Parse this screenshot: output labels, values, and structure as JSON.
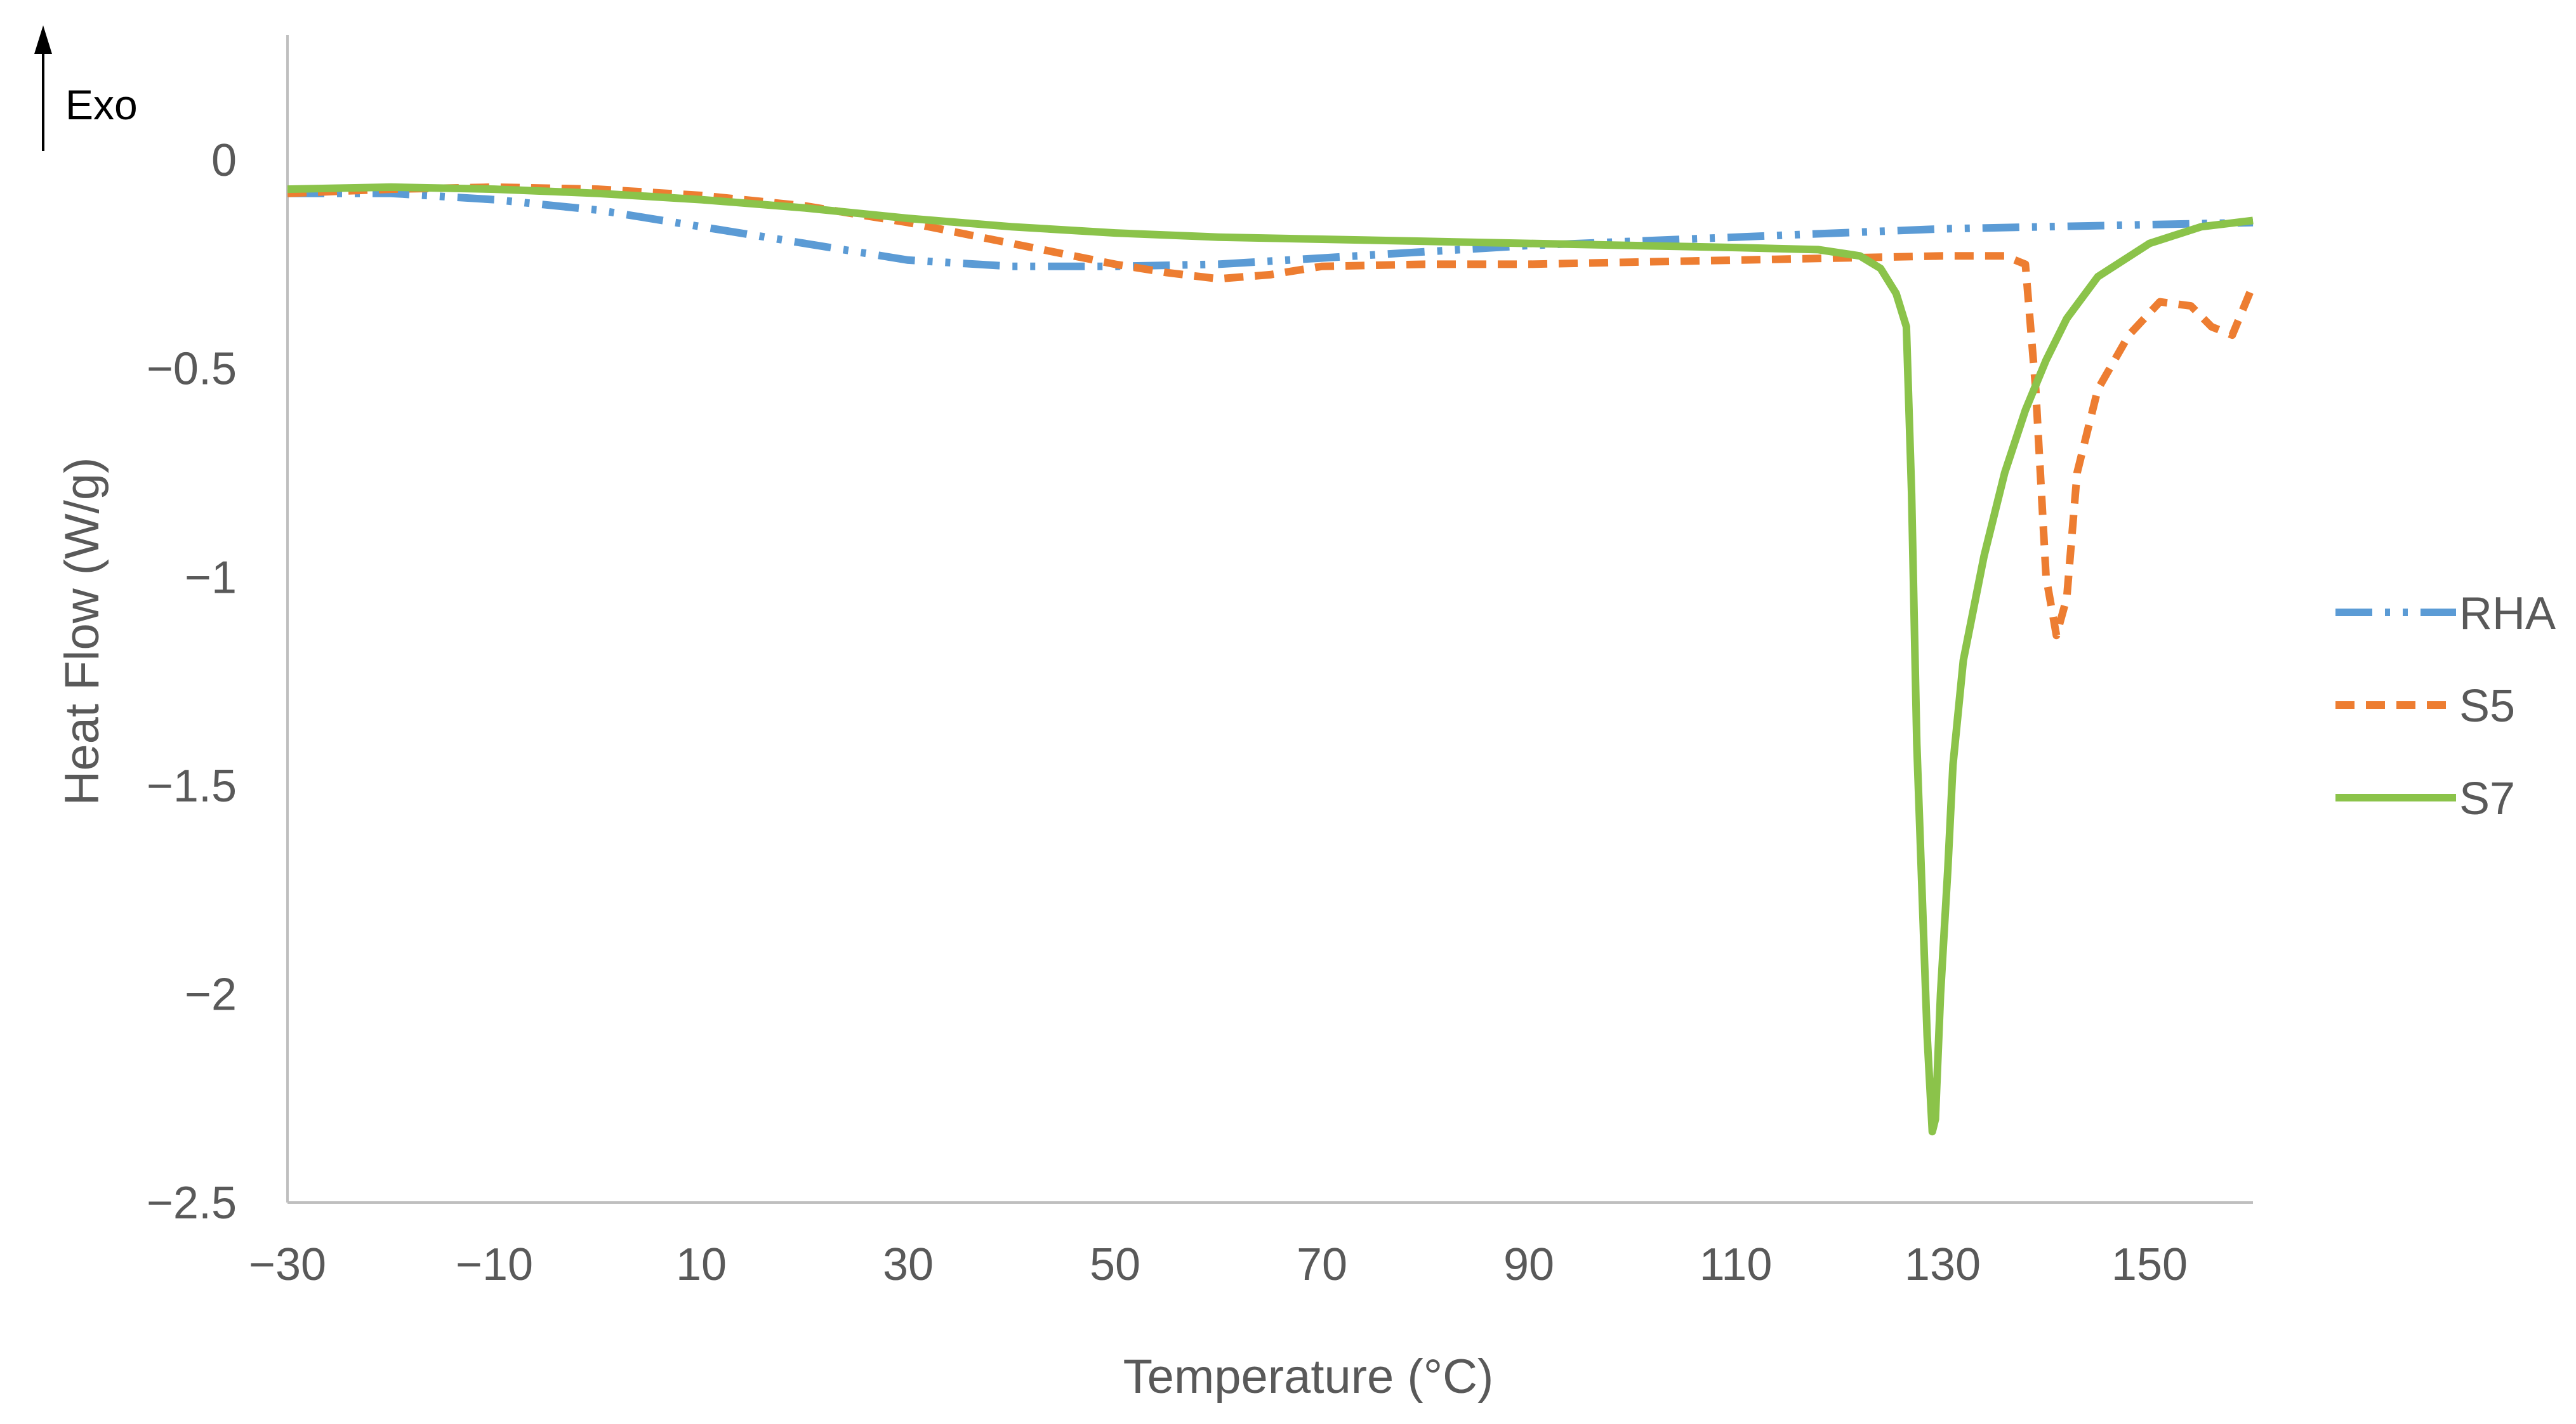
{
  "chart_data": {
    "type": "line",
    "title": "",
    "xlabel": "Temperature (°C)",
    "ylabel": "Heat Flow (W/g)",
    "xlim": [
      -30,
      160
    ],
    "ylim": [
      -2.5,
      0.3
    ],
    "x_ticks": [
      -30,
      -10,
      10,
      30,
      50,
      70,
      90,
      110,
      130,
      150
    ],
    "x_tick_labels": [
      "−30",
      "−10",
      "10",
      "30",
      "50",
      "70",
      "90",
      "110",
      "130",
      "150"
    ],
    "y_ticks": [
      0,
      -0.5,
      -1,
      -1.5,
      -2,
      -2.5
    ],
    "y_tick_labels": [
      "0",
      "−0.5",
      "−1",
      "−1.5",
      "−2",
      "−2.5"
    ],
    "grid": false,
    "legend_position": "right",
    "annotation": {
      "text": "Exo",
      "arrow": "up"
    },
    "series": [
      {
        "name": "RHA",
        "color": "#5B9BD5",
        "dash": "long-dash-dot-dot",
        "x": [
          -30,
          -20,
          -10,
          0,
          10,
          20,
          30,
          40,
          50,
          60,
          70,
          80,
          90,
          100,
          110,
          120,
          130,
          140,
          150,
          160
        ],
        "y": [
          -0.08,
          -0.08,
          -0.095,
          -0.12,
          -0.16,
          -0.2,
          -0.24,
          -0.255,
          -0.255,
          -0.25,
          -0.235,
          -0.22,
          -0.205,
          -0.195,
          -0.185,
          -0.175,
          -0.165,
          -0.16,
          -0.155,
          -0.15
        ]
      },
      {
        "name": "S5",
        "color": "#ED7D31",
        "dash": "short-dash",
        "x": [
          -30,
          -20,
          -10,
          0,
          10,
          20,
          30,
          40,
          50,
          55,
          60,
          65,
          70,
          80,
          90,
          100,
          110,
          120,
          130,
          136,
          138,
          139,
          140,
          141,
          142,
          143,
          145,
          148,
          151,
          154,
          156,
          158,
          160
        ],
        "y": [
          -0.08,
          -0.07,
          -0.065,
          -0.07,
          -0.085,
          -0.11,
          -0.15,
          -0.2,
          -0.25,
          -0.27,
          -0.285,
          -0.275,
          -0.255,
          -0.25,
          -0.25,
          -0.245,
          -0.24,
          -0.235,
          -0.23,
          -0.23,
          -0.25,
          -0.55,
          -1.0,
          -1.14,
          -1.05,
          -0.75,
          -0.55,
          -0.42,
          -0.34,
          -0.35,
          -0.4,
          -0.42,
          -0.3
        ]
      },
      {
        "name": "S7",
        "color": "#8BC34A",
        "dash": "solid",
        "x": [
          -30,
          -20,
          -10,
          0,
          10,
          20,
          30,
          40,
          50,
          60,
          70,
          80,
          90,
          100,
          110,
          118,
          122,
          124,
          125.5,
          126.5,
          127,
          127.5,
          128.5,
          129,
          129.3,
          129.8,
          130.5,
          131,
          132,
          134,
          136,
          138,
          140,
          142,
          145,
          150,
          155,
          160
        ],
        "y": [
          -0.07,
          -0.065,
          -0.07,
          -0.08,
          -0.095,
          -0.115,
          -0.14,
          -0.16,
          -0.175,
          -0.185,
          -0.19,
          -0.195,
          -0.2,
          -0.205,
          -0.21,
          -0.215,
          -0.23,
          -0.26,
          -0.32,
          -0.4,
          -0.8,
          -1.4,
          -2.1,
          -2.33,
          -2.3,
          -2.0,
          -1.7,
          -1.45,
          -1.2,
          -0.95,
          -0.75,
          -0.6,
          -0.48,
          -0.38,
          -0.28,
          -0.2,
          -0.16,
          -0.145
        ]
      }
    ]
  }
}
